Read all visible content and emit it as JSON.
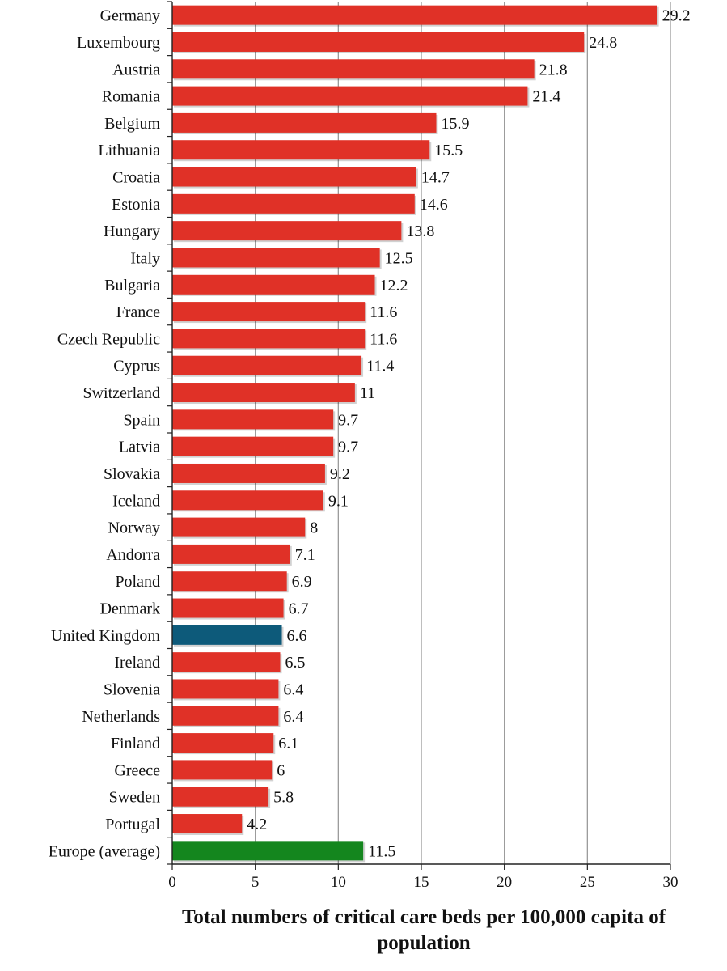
{
  "chart_data": {
    "type": "bar",
    "orientation": "horizontal",
    "categories": [
      "Germany",
      "Luxembourg",
      "Austria",
      "Romania",
      "Belgium",
      "Lithuania",
      "Croatia",
      "Estonia",
      "Hungary",
      "Italy",
      "Bulgaria",
      "France",
      "Czech Republic",
      "Cyprus",
      "Switzerland",
      "Spain",
      "Latvia",
      "Slovakia",
      "Iceland",
      "Norway",
      "Andorra",
      "Poland",
      "Denmark",
      "United Kingdom",
      "Ireland",
      "Slovenia",
      "Netherlands",
      "Finland",
      "Greece",
      "Sweden",
      "Portugal",
      "Europe (average)"
    ],
    "values": [
      29.2,
      24.8,
      21.8,
      21.4,
      15.9,
      15.5,
      14.7,
      14.6,
      13.8,
      12.5,
      12.2,
      11.6,
      11.6,
      11.4,
      11,
      9.7,
      9.7,
      9.2,
      9.1,
      8,
      7.1,
      6.9,
      6.7,
      6.6,
      6.5,
      6.4,
      6.4,
      6.1,
      6,
      5.8,
      4.2,
      11.5
    ],
    "value_labels": [
      "29.2",
      "24.8",
      "21.8",
      "21.4",
      "15.9",
      "15.5",
      "14.7",
      "14.6",
      "13.8",
      "12.5",
      "12.2",
      "11.6",
      "11.6",
      "11.4",
      "11",
      "9.7",
      "9.7",
      "9.2",
      "9.1",
      "8",
      "7.1",
      "6.9",
      "6.7",
      "6.6",
      "6.5",
      "6.4",
      "6.4",
      "6.1",
      "6",
      "5.8",
      "4.2",
      "11.5"
    ],
    "colors": {
      "default": "#e03127",
      "highlight": {
        "United Kingdom": "#0d5a7a",
        "Europe (average)": "#14861e"
      }
    },
    "x_ticks": [
      "0",
      "5",
      "10",
      "15",
      "20",
      "25",
      "30"
    ],
    "xlim": [
      0,
      30
    ],
    "xlabel_line1": "Total numbers of critical care beds per 100,000 capita of",
    "xlabel_line2": "population",
    "grid": "vertical",
    "legend": "none"
  }
}
